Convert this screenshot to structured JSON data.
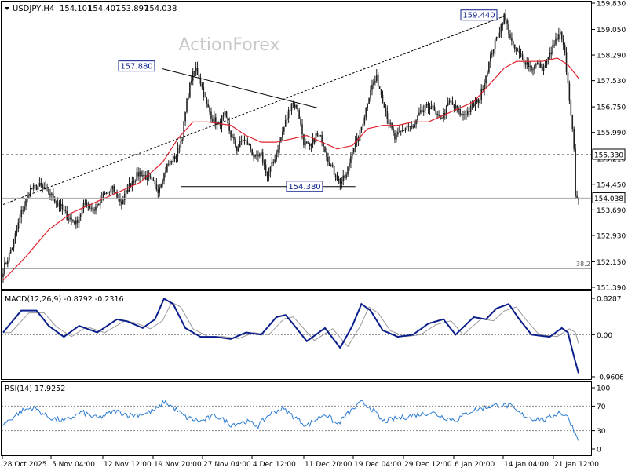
{
  "symbol_header": {
    "symbol": "USDJPY,H4",
    "open": "154.101",
    "high": "154.407",
    "low": "153.897",
    "close": "154.038"
  },
  "watermark": "ActionForex",
  "colors": {
    "candle": "#1f1f1f",
    "ma": "#e0202c",
    "trendline": "#000000",
    "macd": "#0b1f8c",
    "macd_signal": "#9a9a9a",
    "rsi": "#2b7bd1",
    "price_label_border": "#0b1f8c"
  },
  "chart_data": [
    {
      "type": "candlestick",
      "title": "USDJPY,H4",
      "y_ticks": [
        "159.830",
        "159.050",
        "158.290",
        "157.530",
        "156.750",
        "155.990",
        "155.210",
        "154.450",
        "153.690",
        "152.930",
        "152.150",
        "151.390"
      ],
      "y_range": [
        151.39,
        159.83
      ],
      "x_ticks": [
        "28 Oct 2025",
        "5 Nov 04:00",
        "12 Nov 12:00",
        "19 Nov 20:00",
        "27 Nov 04:00",
        "4 Dec 12:00",
        "11 Dec 20:00",
        "19 Dec 04:00",
        "29 Dec 12:00",
        "6 Jan 20:00",
        "14 Jan 04:00",
        "21 Jan 12:00"
      ],
      "series": [
        {
          "close_path": [
            [
              0,
              151.9
            ],
            [
              6,
              152.6
            ],
            [
              12,
              153.6
            ],
            [
              18,
              154.3
            ],
            [
              24,
              154.4
            ],
            [
              30,
              154.2
            ],
            [
              36,
              153.9
            ],
            [
              42,
              153.5
            ],
            [
              48,
              153.3
            ],
            [
              54,
              153.9
            ],
            [
              60,
              153.7
            ],
            [
              66,
              154.1
            ],
            [
              72,
              154.3
            ],
            [
              78,
              153.9
            ],
            [
              84,
              154.5
            ],
            [
              90,
              154.8
            ],
            [
              96,
              154.6
            ],
            [
              102,
              154.3
            ],
            [
              108,
              155.0
            ],
            [
              114,
              155.3
            ],
            [
              118,
              155.9
            ],
            [
              121,
              156.9
            ],
            [
              124,
              157.6
            ],
            [
              127,
              157.88
            ],
            [
              130,
              157.5
            ],
            [
              134,
              156.8
            ],
            [
              138,
              156.4
            ],
            [
              142,
              156.2
            ],
            [
              146,
              156.5
            ],
            [
              150,
              155.9
            ],
            [
              154,
              155.5
            ],
            [
              158,
              155.8
            ],
            [
              162,
              155.6
            ],
            [
              166,
              155.2
            ],
            [
              170,
              155.3
            ],
            [
              174,
              154.7
            ],
            [
              178,
              155.1
            ],
            [
              182,
              155.7
            ],
            [
              186,
              156.3
            ],
            [
              190,
              156.9
            ],
            [
              194,
              156.7
            ],
            [
              198,
              155.7
            ],
            [
              202,
              155.5
            ],
            [
              206,
              155.9
            ],
            [
              210,
              155.8
            ],
            [
              214,
              155.2
            ],
            [
              218,
              154.8
            ],
            [
              222,
              154.5
            ],
            [
              226,
              154.7
            ],
            [
              230,
              155.5
            ],
            [
              234,
              155.8
            ],
            [
              238,
              156.5
            ],
            [
              242,
              157.3
            ],
            [
              246,
              157.6
            ],
            [
              250,
              157.0
            ],
            [
              254,
              156.3
            ],
            [
              258,
              155.8
            ],
            [
              262,
              156.0
            ],
            [
              266,
              156.2
            ],
            [
              270,
              156.1
            ],
            [
              274,
              156.5
            ],
            [
              278,
              156.7
            ],
            [
              282,
              156.8
            ],
            [
              286,
              156.4
            ],
            [
              290,
              156.5
            ],
            [
              294,
              156.9
            ],
            [
              298,
              156.7
            ],
            [
              302,
              156.5
            ],
            [
              306,
              156.6
            ],
            [
              310,
              156.8
            ],
            [
              314,
              157.0
            ],
            [
              318,
              157.7
            ],
            [
              322,
              158.4
            ],
            [
              326,
              158.9
            ],
            [
              330,
              159.44
            ],
            [
              333,
              159.0
            ],
            [
              336,
              158.5
            ],
            [
              340,
              158.3
            ],
            [
              344,
              158.1
            ],
            [
              348,
              157.9
            ],
            [
              352,
              158.0
            ],
            [
              356,
              157.9
            ],
            [
              360,
              158.3
            ],
            [
              364,
              158.7
            ],
            [
              367,
              158.9
            ],
            [
              370,
              158.3
            ],
            [
              372,
              157.4
            ],
            [
              374,
              156.6
            ],
            [
              376,
              155.4
            ],
            [
              377,
              154.2
            ],
            [
              379,
              154.038
            ]
          ]
        },
        {
          "name": "",
          "note": "moving average",
          "path": [
            [
              0,
              151.6
            ],
            [
              15,
              152.3
            ],
            [
              30,
              153.1
            ],
            [
              45,
              153.6
            ],
            [
              60,
              153.9
            ],
            [
              75,
              154.2
            ],
            [
              90,
              154.5
            ],
            [
              105,
              155.1
            ],
            [
              115,
              155.8
            ],
            [
              125,
              156.3
            ],
            [
              135,
              156.3
            ],
            [
              150,
              156.2
            ],
            [
              160,
              155.9
            ],
            [
              170,
              155.7
            ],
            [
              180,
              155.7
            ],
            [
              190,
              155.8
            ],
            [
              200,
              155.9
            ],
            [
              210,
              155.7
            ],
            [
              220,
              155.5
            ],
            [
              230,
              155.6
            ],
            [
              240,
              156.1
            ],
            [
              250,
              156.2
            ],
            [
              260,
              156.2
            ],
            [
              270,
              156.3
            ],
            [
              280,
              156.3
            ],
            [
              290,
              156.5
            ],
            [
              300,
              156.7
            ],
            [
              310,
              156.9
            ],
            [
              320,
              157.4
            ],
            [
              330,
              157.9
            ],
            [
              338,
              158.1
            ],
            [
              345,
              158.1
            ],
            [
              355,
              158.1
            ],
            [
              365,
              158.2
            ],
            [
              372,
              158.0
            ],
            [
              379,
              157.6
            ]
          ]
        }
      ],
      "annotations": [
        {
          "label": "157.880",
          "value": 157.88,
          "kind": "price-box"
        },
        {
          "label": "159.440",
          "value": 159.44,
          "kind": "price-box"
        },
        {
          "label": "154.380",
          "value": 154.38,
          "kind": "price-box"
        },
        {
          "label": "155.330",
          "value": 155.33,
          "kind": "axis-box"
        },
        {
          "label": "154.038",
          "value": 154.038,
          "kind": "axis-box"
        },
        {
          "label": "38.2",
          "value": 151.95,
          "kind": "fib-level"
        }
      ]
    },
    {
      "type": "line",
      "title": "MACD(12,26,9) -0.8792 -0.2316",
      "y_ticks": [
        "0.8287",
        "0.00",
        "-0.9606"
      ],
      "y_range": [
        -0.9606,
        0.8287
      ]
    },
    {
      "type": "line",
      "title": "RSI(14) 17.9252",
      "y_ticks": [
        "100",
        "70",
        "30",
        "0"
      ],
      "y_range": [
        0,
        100
      ]
    }
  ]
}
